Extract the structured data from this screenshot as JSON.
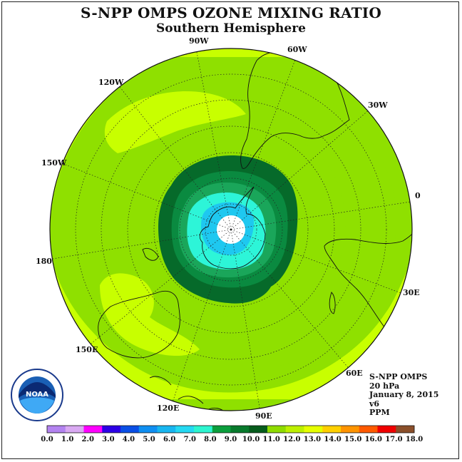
{
  "title": "S-NPP OMPS OZONE MIXING RATIO",
  "subtitle": "Southern Hemisphere",
  "longitude_labels": [
    "90W",
    "60W",
    "30W",
    "0",
    "30E",
    "60E",
    "90E",
    "120E",
    "150E",
    "180",
    "150W",
    "120W"
  ],
  "info": {
    "instrument": "S-NPP OMPS",
    "level": "20 hPa",
    "date": "January 8, 2015",
    "version": "v6",
    "units": "PPM"
  },
  "logo_text": "NOAA",
  "colorbar": {
    "tick_labels": [
      "0.0",
      "1.0",
      "2.0",
      "3.0",
      "4.0",
      "5.0",
      "6.0",
      "7.0",
      "8.0",
      "9.0",
      "10.0",
      "11.0",
      "12.0",
      "13.0",
      "14.0",
      "15.0",
      "16.0",
      "17.0",
      "18.0"
    ],
    "colors": [
      "#b383f0",
      "#d9a9f2",
      "#ff00ff",
      "#2c00e6",
      "#0a4fe6",
      "#0f8ff2",
      "#18b6f0",
      "#25d9f2",
      "#2df5d0",
      "#0b9e3c",
      "#087a2c",
      "#065c1c",
      "#8fdc00",
      "#bdf000",
      "#e6ff00",
      "#ffd000",
      "#ff9400",
      "#ff5a00",
      "#f00000",
      "#8b4f2a"
    ]
  },
  "colors": {
    "ppm_6_7": "#1ec8f0",
    "ppm_7_8": "#2df5d8",
    "ppm_8_9": "#1aa65a",
    "ppm_9_10": "#0a8a40",
    "ppm_10_11": "#066a2a",
    "ppm_11_12": "#8fe000",
    "ppm_12_13": "#c8ff00",
    "no_data": "#ffffff"
  }
}
